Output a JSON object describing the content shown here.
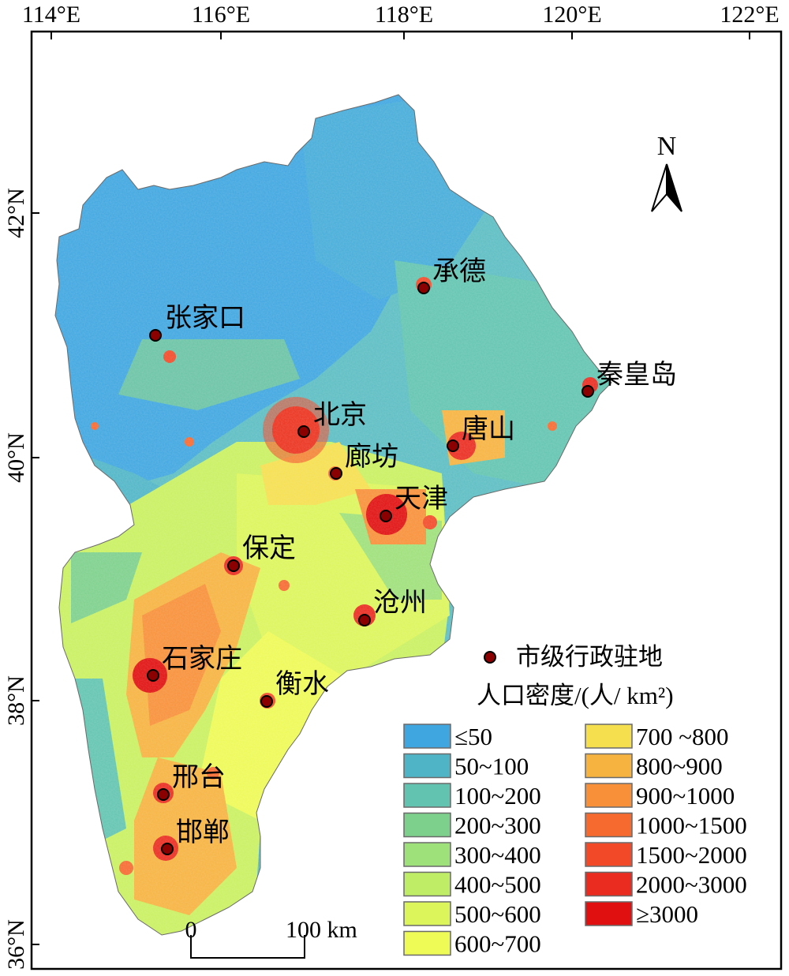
{
  "axes": {
    "lon_ticks": [
      "114°E",
      "116°E",
      "118°E",
      "120°E",
      "122°E"
    ],
    "lat_ticks": [
      "42°N",
      "40°N",
      "38°N",
      "36°N"
    ]
  },
  "north_arrow": {
    "label": "N",
    "icon": "north-arrow-icon"
  },
  "scale_bar": {
    "start_label": "0",
    "end_label": "100 km"
  },
  "cities": [
    {
      "name": "承德"
    },
    {
      "name": "张家口"
    },
    {
      "name": "秦皇岛"
    },
    {
      "name": "北京"
    },
    {
      "name": "唐山"
    },
    {
      "name": "廊坊"
    },
    {
      "name": "天津"
    },
    {
      "name": "保定"
    },
    {
      "name": "沧州"
    },
    {
      "name": "石家庄"
    },
    {
      "name": "衡水"
    },
    {
      "name": "邢台"
    },
    {
      "name": "邯郸"
    }
  ],
  "legend": {
    "city_marker_label": "市级行政驻地",
    "title": "人口密度/(人/ km²)",
    "classes": [
      {
        "label": "≤50",
        "color": "#3fa6e0"
      },
      {
        "label": "50~100",
        "color": "#4fb5c6"
      },
      {
        "label": "100~200",
        "color": "#62c4b0"
      },
      {
        "label": "200~300",
        "color": "#7dd08c"
      },
      {
        "label": "300~400",
        "color": "#9ee07a"
      },
      {
        "label": "400~500",
        "color": "#bfee66"
      },
      {
        "label": "500~600",
        "color": "#dcf55a"
      },
      {
        "label": "600~700",
        "color": "#eefa55"
      },
      {
        "label": "700 ~800",
        "color": "#f5df4e"
      },
      {
        "label": "800~900",
        "color": "#f6b340"
      },
      {
        "label": "900~1000",
        "color": "#f79038"
      },
      {
        "label": "1000~1500",
        "color": "#f66a30"
      },
      {
        "label": "1500~2000",
        "color": "#f24a28"
      },
      {
        "label": "2000~3000",
        "color": "#ea2c20"
      },
      {
        "label": "≥3000",
        "color": "#e01010"
      }
    ]
  }
}
